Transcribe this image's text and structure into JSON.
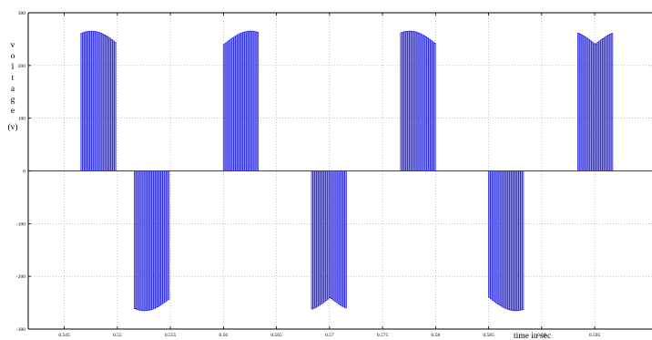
{
  "chart_data": {
    "type": "line",
    "title": "",
    "xlabel": "time in sec",
    "ylabel": [
      "v",
      "o",
      "l",
      "t",
      "a",
      "g",
      "e",
      "(v)"
    ],
    "xlim": [
      0.5416,
      0.6004
    ],
    "ylim": [
      -300,
      300
    ],
    "grid": true,
    "grid_style": "dotted",
    "x_ticks": [
      0.545,
      0.55,
      0.555,
      0.56,
      0.565,
      0.57,
      0.575,
      0.58,
      0.585,
      0.59,
      0.595
    ],
    "x_tick_labels": [
      "0.545",
      "0.55",
      "0.555",
      "0.56",
      "0.565",
      "0.57",
      "0.575",
      "0.58",
      "0.585",
      "0.59",
      "0.595"
    ],
    "y_ticks": [
      -300,
      -200,
      -100,
      0,
      100,
      200,
      300
    ],
    "y_tick_labels": [
      "-300",
      "-200",
      "-100",
      "0",
      "100",
      "200",
      "300"
    ],
    "series": [
      {
        "color": "#2e2ee6",
        "waveform": "quasi-square PWM line voltage",
        "pulses_per_half_cycle": 20,
        "half_cycle_s": 0.005,
        "gap_s": 0.001667,
        "pulse_duty": 0.72,
        "peak_center_v": 265,
        "peak_edge_v": 240,
        "half_cycles": [
          {
            "start": 0.5416,
            "end": 0.5499,
            "sign": 1,
            "edge_start": false,
            "edge_end": true
          },
          {
            "start": 0.5516,
            "end": 0.5583,
            "sign": -1,
            "edge_start": true,
            "edge_end": true
          },
          {
            "start": 0.56,
            "end": 0.5666,
            "sign": 1,
            "edge_start": true,
            "edge_end": true
          },
          {
            "start": 0.5683,
            "end": 0.575,
            "sign": -1,
            "edge_start": true,
            "edge_end": true
          },
          {
            "start": 0.5767,
            "end": 0.5833,
            "sign": 1,
            "edge_start": true,
            "edge_end": true
          },
          {
            "start": 0.585,
            "end": 0.5917,
            "sign": -1,
            "edge_start": true,
            "edge_end": true
          },
          {
            "start": 0.5934,
            "end": 0.6004,
            "sign": 1,
            "edge_start": true,
            "edge_end": false
          }
        ]
      }
    ]
  }
}
